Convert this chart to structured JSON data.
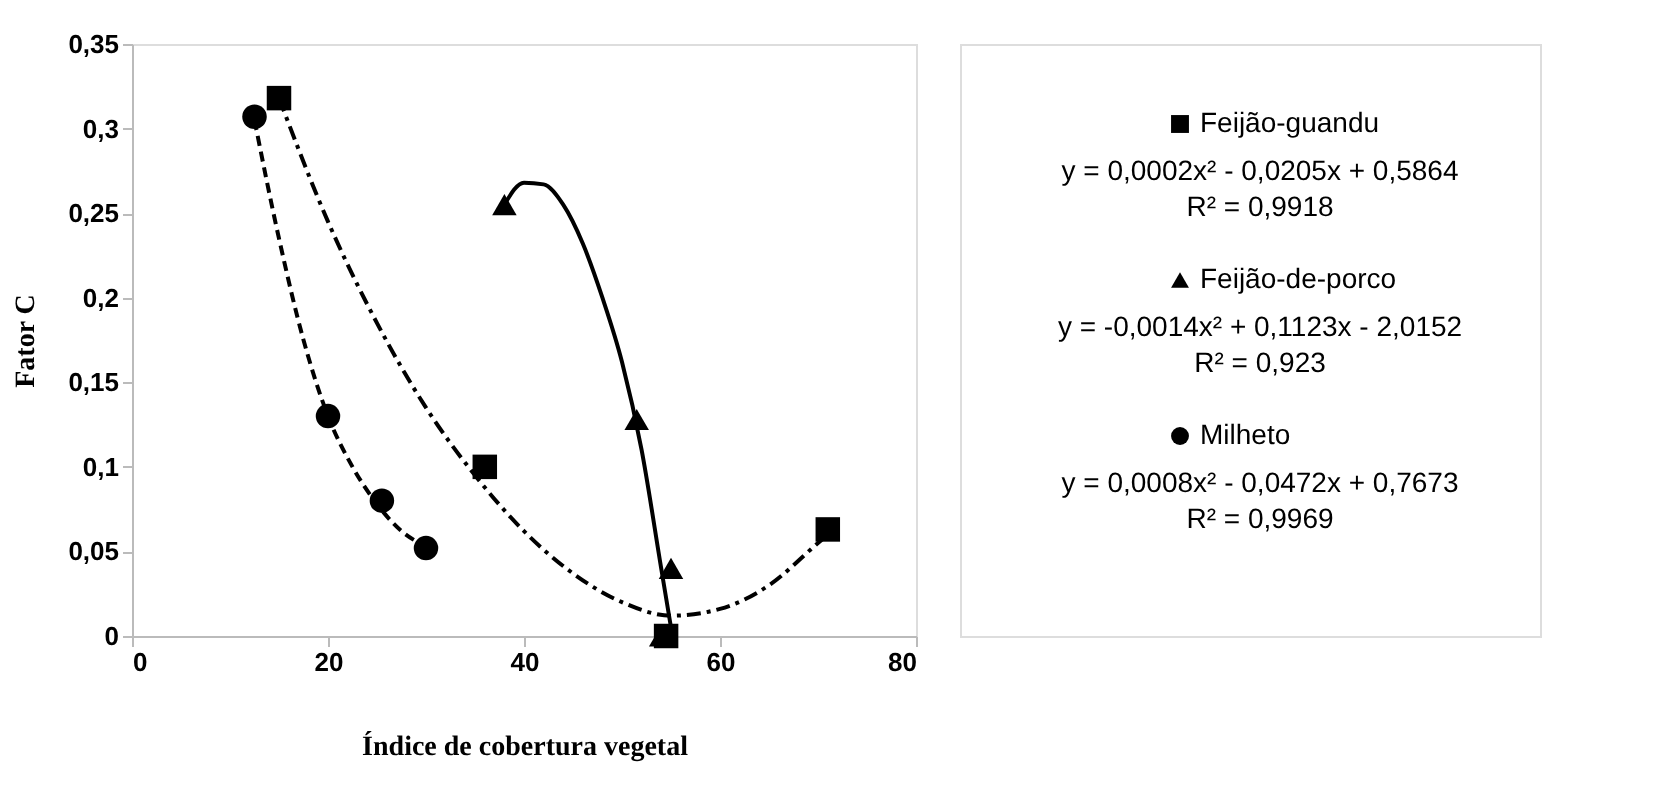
{
  "chart_data": {
    "type": "scatter",
    "xlabel": "Índice de cobertura vegetal",
    "ylabel": "Fator C",
    "xlim": [
      0,
      80
    ],
    "xticks": [
      0,
      20,
      40,
      60,
      80
    ],
    "ylim": [
      0,
      0.35
    ],
    "yticks": [
      {
        "value": 0,
        "label": "0"
      },
      {
        "value": 0.05,
        "label": "0,05"
      },
      {
        "value": 0.1,
        "label": "0,1"
      },
      {
        "value": 0.15,
        "label": "0,15"
      },
      {
        "value": 0.2,
        "label": "0,2"
      },
      {
        "value": 0.25,
        "label": "0,25"
      },
      {
        "value": 0.3,
        "label": "0,3"
      },
      {
        "value": 0.35,
        "label": "0,35"
      }
    ],
    "grid": false,
    "legend": "right",
    "series": [
      {
        "name": "Feijão-guandu",
        "type": "scatter",
        "marker": "square",
        "color": "#000000",
        "x": [
          15,
          36,
          54.5,
          71
        ],
        "values": [
          0.318,
          0.1,
          0,
          0.063
        ]
      },
      {
        "name": "Feijão-de-porco",
        "type": "scatter",
        "marker": "triangle",
        "color": "#000000",
        "x": [
          38,
          51.5,
          55,
          54
        ],
        "values": [
          0.255,
          0.128,
          0.04,
          0
        ]
      },
      {
        "name": "Milheto",
        "type": "scatter",
        "marker": "circle",
        "color": "#000000",
        "x": [
          12.5,
          20,
          25.5,
          30
        ],
        "values": [
          0.307,
          0.13,
          0.08,
          0.052
        ]
      },
      {
        "type": "line",
        "line_style": "dashdot",
        "color": "#000000",
        "x": [
          15,
          20,
          25,
          30,
          35,
          40,
          45,
          50,
          55,
          60,
          65,
          70,
          71
        ],
        "values": [
          0.318,
          0.245,
          0.185,
          0.135,
          0.095,
          0.062,
          0.037,
          0.02,
          0.012,
          0.016,
          0.03,
          0.055,
          0.06
        ]
      },
      {
        "type": "line",
        "line_style": "solid",
        "color": "#000000",
        "x": [
          38,
          40,
          42,
          44,
          46,
          48,
          50,
          52,
          54,
          55
        ],
        "values": [
          0.255,
          0.268,
          0.267,
          0.255,
          0.232,
          0.2,
          0.162,
          0.11,
          0.04,
          0.005
        ]
      },
      {
        "type": "line",
        "line_style": "dashed",
        "color": "#000000",
        "x": [
          12.5,
          15,
          17.5,
          20,
          22.5,
          25,
          27.5,
          30
        ],
        "values": [
          0.305,
          0.235,
          0.175,
          0.13,
          0.1,
          0.078,
          0.062,
          0.053
        ]
      }
    ],
    "annotations": [
      "y = 0,0002x² - 0,0205x + 0,5864",
      "R² = 0,9918",
      "y = -0,0014x² + 0,1123x - 2,0152",
      "R² = 0,923",
      "y = 0,0008x² - 0,0472x + 0,7673",
      "R² = 0,9969"
    ]
  }
}
